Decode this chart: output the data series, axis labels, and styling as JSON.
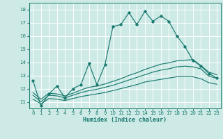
{
  "title": "",
  "xlabel": "Humidex (Indice chaleur)",
  "ylabel": "",
  "xlim": [
    -0.5,
    23.5
  ],
  "ylim": [
    10.5,
    18.5
  ],
  "bg_color": "#ceeae7",
  "grid_color": "#ffffff",
  "line_color": "#1a7a6e",
  "xticks": [
    0,
    1,
    2,
    3,
    4,
    5,
    6,
    7,
    8,
    9,
    10,
    11,
    12,
    13,
    14,
    15,
    16,
    17,
    18,
    19,
    20,
    21,
    22,
    23
  ],
  "yticks": [
    11,
    12,
    13,
    14,
    15,
    16,
    17,
    18
  ],
  "line1_x": [
    0,
    1,
    2,
    3,
    4,
    5,
    6,
    7,
    8,
    9,
    10,
    11,
    12,
    13,
    14,
    15,
    16,
    17,
    18,
    19,
    20,
    21,
    22,
    23
  ],
  "line1_y": [
    12.6,
    10.7,
    11.6,
    12.2,
    11.3,
    12.0,
    12.3,
    13.9,
    12.3,
    13.8,
    16.7,
    16.85,
    17.75,
    16.85,
    17.85,
    17.1,
    17.5,
    17.1,
    16.0,
    15.2,
    14.15,
    13.7,
    13.15,
    12.8
  ],
  "line2_x": [
    0,
    1,
    2,
    3,
    4,
    5,
    6,
    7,
    8,
    9,
    10,
    11,
    12,
    13,
    14,
    15,
    16,
    17,
    18,
    19,
    20,
    21,
    22,
    23
  ],
  "line2_y": [
    11.7,
    11.2,
    11.65,
    11.6,
    11.45,
    11.65,
    11.9,
    12.1,
    12.2,
    12.35,
    12.55,
    12.75,
    13.0,
    13.2,
    13.45,
    13.65,
    13.85,
    13.95,
    14.1,
    14.15,
    14.2,
    13.75,
    13.25,
    13.05
  ],
  "line3_x": [
    0,
    1,
    2,
    3,
    4,
    5,
    6,
    7,
    8,
    9,
    10,
    11,
    12,
    13,
    14,
    15,
    16,
    17,
    18,
    19,
    20,
    21,
    22,
    23
  ],
  "line3_y": [
    11.5,
    11.0,
    11.5,
    11.45,
    11.3,
    11.5,
    11.7,
    11.85,
    11.95,
    12.1,
    12.25,
    12.45,
    12.65,
    12.85,
    13.05,
    13.25,
    13.4,
    13.5,
    13.65,
    13.7,
    13.65,
    13.5,
    12.95,
    12.78
  ],
  "line4_x": [
    0,
    1,
    2,
    3,
    4,
    5,
    6,
    7,
    8,
    9,
    10,
    11,
    12,
    13,
    14,
    15,
    16,
    17,
    18,
    19,
    20,
    21,
    22,
    23
  ],
  "line4_y": [
    11.2,
    10.85,
    11.25,
    11.2,
    11.1,
    11.25,
    11.4,
    11.5,
    11.6,
    11.7,
    11.85,
    12.0,
    12.15,
    12.3,
    12.5,
    12.6,
    12.7,
    12.8,
    12.9,
    12.92,
    12.9,
    12.75,
    12.45,
    12.33
  ]
}
